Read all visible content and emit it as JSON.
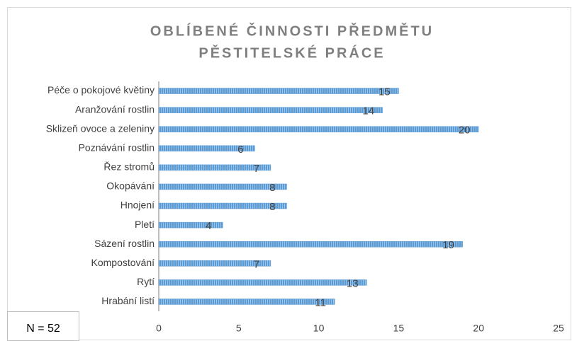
{
  "chart_data": {
    "type": "bar",
    "orientation": "horizontal",
    "title": [
      "OBLÍBENÉ ČINNOSTI PŘEDMĚTU",
      "PĚSTITELSKÉ PRÁCE"
    ],
    "categories": [
      "Péče o pokojové květiny",
      "Aranžování rostlin",
      "Sklizeň ovoce a zeleniny",
      "Poznávání rostlin",
      "Řez stromů",
      "Okopávání",
      "Hnojení",
      "Pletí",
      "Sázení rostlin",
      "Kompostování",
      "Rytí",
      "Hrabání listí"
    ],
    "values": [
      15,
      14,
      20,
      6,
      7,
      8,
      8,
      4,
      19,
      7,
      13,
      11
    ],
    "color": "#5b9bd5",
    "xlim": [
      0,
      25
    ],
    "xticks": [
      0,
      5,
      10,
      15,
      20,
      25
    ],
    "grid": false,
    "annotation": "N = 52"
  }
}
